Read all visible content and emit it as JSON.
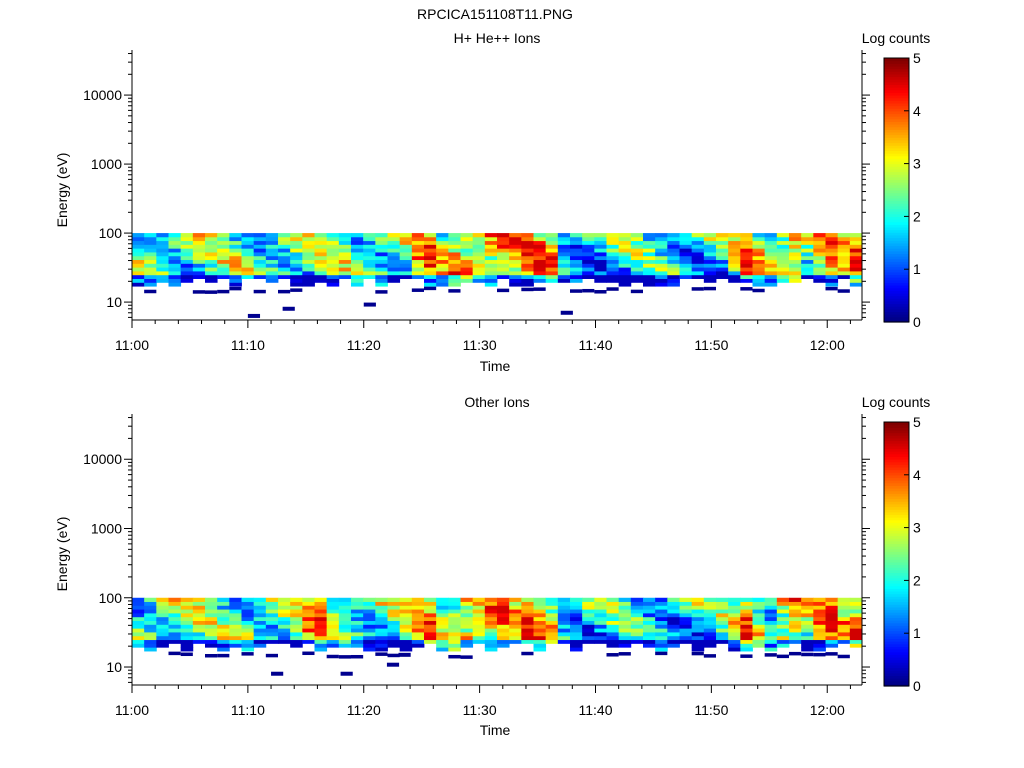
{
  "figure_title": "RPCICA151108T11.PNG",
  "chart_data": [
    {
      "type": "heatmap",
      "title": "H+ He++ Ions",
      "xlabel": "Time",
      "ylabel": "Energy (eV)",
      "x_ticks": [
        "11:00",
        "11:10",
        "11:20",
        "11:30",
        "11:40",
        "11:50",
        "12:00"
      ],
      "y_ticks": [
        "10",
        "100",
        "1000",
        "10000"
      ],
      "y_scale": "log",
      "y_range": [
        5.5,
        45000
      ],
      "x_range": [
        "11:00",
        "12:03"
      ],
      "colorbar_label": "Log counts",
      "colorbar_ticks": [
        "0",
        "1",
        "2",
        "3",
        "4",
        "5"
      ],
      "colorbar_range": [
        0,
        5
      ],
      "colormap": "jet",
      "grid": false,
      "energy_band_eV": [
        17,
        100
      ],
      "peak_bursts_minutes": [
        25.5,
        28.5,
        30.5,
        32,
        34,
        35.5,
        53,
        57,
        60,
        62.5
      ],
      "min_edge_markers": [
        {
          "time": "11:10",
          "energy_eV": 6.3
        },
        {
          "time": "11:13",
          "energy_eV": 8.0
        },
        {
          "time": "11:20",
          "energy_eV": 9.2
        },
        {
          "time": "11:37",
          "energy_eV": 7.0
        }
      ]
    },
    {
      "type": "heatmap",
      "title": "Other Ions",
      "xlabel": "Time",
      "ylabel": "Energy (eV)",
      "x_ticks": [
        "11:00",
        "11:10",
        "11:20",
        "11:30",
        "11:40",
        "11:50",
        "12:00"
      ],
      "y_ticks": [
        "10",
        "100",
        "1000",
        "10000"
      ],
      "y_scale": "log",
      "y_range": [
        5.5,
        45000
      ],
      "x_range": [
        "11:00",
        "12:03"
      ],
      "colorbar_label": "Log counts",
      "colorbar_ticks": [
        "0",
        "1",
        "2",
        "3",
        "4",
        "5"
      ],
      "colorbar_range": [
        0,
        5
      ],
      "colormap": "jet",
      "grid": false,
      "energy_band_eV": [
        17,
        100
      ],
      "peak_bursts_minutes": [
        16,
        25.5,
        28.5,
        30.5,
        32,
        34,
        35.5,
        53,
        57,
        60,
        62.5
      ],
      "min_edge_markers": [
        {
          "time": "11:12",
          "energy_eV": 8.0
        },
        {
          "time": "11:18",
          "energy_eV": 8.0
        },
        {
          "time": "11:22",
          "energy_eV": 10.8
        },
        {
          "time": "11:23",
          "energy_eV": 15.0
        }
      ]
    }
  ]
}
